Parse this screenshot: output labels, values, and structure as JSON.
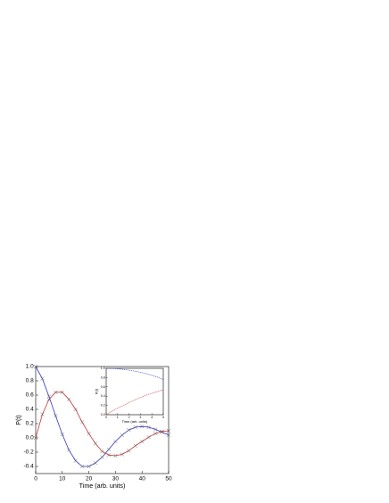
{
  "chart_data": [
    {
      "type": "line",
      "xlabel": "Time (arb. units)",
      "ylabel": "P(t)",
      "x": [
        0,
        2.5,
        5,
        7.5,
        10,
        12.5,
        15,
        17.5,
        20,
        22.5,
        25,
        27.5,
        30,
        32.5,
        35,
        37.5,
        40,
        42.5,
        45,
        47.5,
        50
      ],
      "series": [
        {
          "color": "#3434c8",
          "values": [
            1,
            0.83,
            0.58,
            0.31,
            0.05,
            -0.17,
            -0.32,
            -0.4,
            -0.4,
            -0.35,
            -0.27,
            -0.16,
            -0.05,
            0.04,
            0.11,
            0.15,
            0.16,
            0.15,
            0.12,
            0.08,
            0.04
          ]
        },
        {
          "color": "#c83434",
          "values": [
            0,
            0.33,
            0.54,
            0.64,
            0.64,
            0.54,
            0.4,
            0.22,
            0.06,
            -0.08,
            -0.19,
            -0.24,
            -0.25,
            -0.23,
            -0.18,
            -0.11,
            -0.05,
            0.01,
            0.06,
            0.09,
            0.1
          ]
        }
      ],
      "xlim": [
        0,
        50
      ],
      "xticks": [
        0,
        10,
        20,
        30,
        40,
        50
      ],
      "ylim": [
        -0.5,
        1.0
      ],
      "yticks": [
        {
          "value": -0.4,
          "label": "-0.4"
        },
        {
          "value": -0.2,
          "label": "-0.2"
        },
        {
          "value": 0,
          "label": "0.0"
        },
        {
          "value": 0.2,
          "label": "0.2"
        },
        {
          "value": 0.4,
          "label": "0.4"
        },
        {
          "value": 0.6,
          "label": "0.6"
        },
        {
          "value": 0.8,
          "label": "0.8"
        },
        {
          "value": 1.0,
          "label": "1.0"
        }
      ]
    },
    {
      "type": "line",
      "xlabel": "Time (arb. units)",
      "ylabel": "P(t)",
      "x": [
        0,
        0.5,
        1,
        1.5,
        2,
        2.5,
        3,
        3.5,
        4,
        4.5,
        5
      ],
      "series": [
        {
          "color": "#3434c8",
          "values": [
            1,
            0.997,
            0.99,
            0.977,
            0.96,
            0.94,
            0.915,
            0.885,
            0.85,
            0.81,
            0.76
          ]
        },
        {
          "color": "#c83434",
          "values": [
            0,
            0.07,
            0.14,
            0.2,
            0.26,
            0.32,
            0.37,
            0.42,
            0.46,
            0.5,
            0.54
          ]
        }
      ],
      "xlim": [
        0,
        5
      ],
      "xticks": [
        0,
        1,
        2,
        3,
        4,
        5
      ],
      "ylim": [
        0,
        1.0
      ],
      "yticks": [
        {
          "value": 0,
          "label": "0.0"
        },
        {
          "value": 0.2,
          "label": "0.2"
        },
        {
          "value": 0.4,
          "label": "0.4"
        },
        {
          "value": 0.6,
          "label": "0.6"
        },
        {
          "value": 0.8,
          "label": "0.8"
        },
        {
          "value": 1.0,
          "label": "1.0"
        }
      ]
    }
  ]
}
